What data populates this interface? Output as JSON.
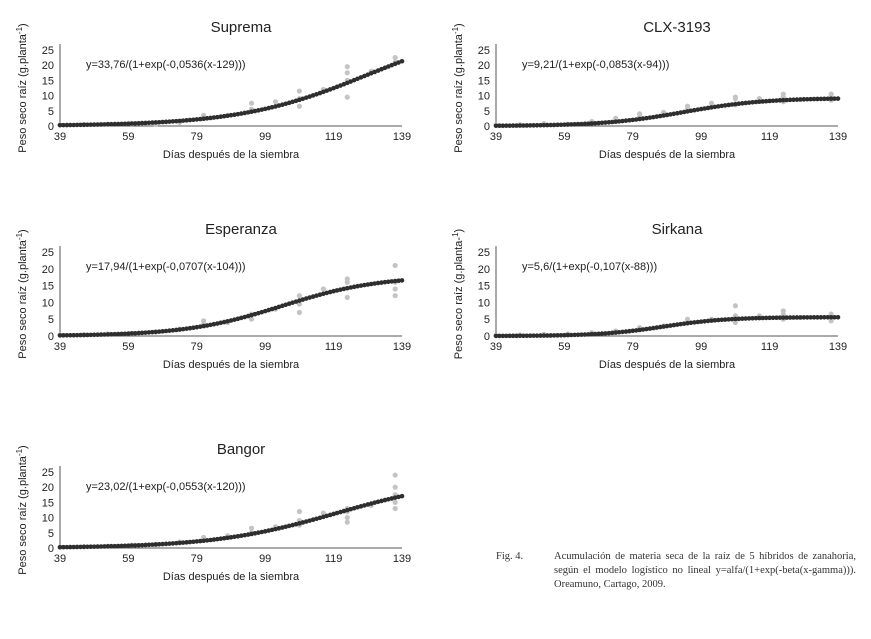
{
  "chart_data": [
    {
      "type": "scatter",
      "title": "Suprema",
      "equation": "y=33,76/(1+exp(-0,0536(x-129)))",
      "ylabel_main": "Peso seco raíz (g.planta",
      "ylabel_sup": "-1",
      "ylabel_end": ")",
      "xlabel": "Días después de la siembra",
      "xlim": [
        39,
        139
      ],
      "ylim": [
        0,
        25
      ],
      "xticks": [
        "39",
        "59",
        "79",
        "99",
        "119",
        "139"
      ],
      "yticks": [
        "0",
        "5",
        "10",
        "15",
        "20",
        "25"
      ],
      "model": {
        "alfa": 33.76,
        "beta": 0.0536,
        "gamma": 129
      },
      "series": [
        {
          "values": [
            [
              39,
              0.4
            ],
            [
              46,
              0.5
            ],
            [
              53,
              0.6
            ],
            [
              60,
              0.8
            ],
            [
              67,
              0.5
            ],
            [
              67,
              1.0
            ],
            [
              74,
              1.2
            ],
            [
              81,
              2.5
            ],
            [
              81,
              3.5
            ],
            [
              88,
              3.5
            ],
            [
              95,
              5.5
            ],
            [
              95,
              7.5
            ],
            [
              102,
              8.0
            ],
            [
              109,
              6.5
            ],
            [
              109,
              9.0
            ],
            [
              109,
              11.5
            ],
            [
              116,
              12.0
            ],
            [
              123,
              9.5
            ],
            [
              123,
              15.0
            ],
            [
              123,
              17.5
            ],
            [
              123,
              19.5
            ],
            [
              130,
              18.0
            ],
            [
              137,
              21.0
            ],
            [
              137,
              22.5
            ]
          ]
        }
      ]
    },
    {
      "type": "scatter",
      "title": "CLX-3193",
      "equation": "y=9,21/(1+exp(-0,0853(x-94)))",
      "ylabel_main": "Peso seco raíz (g.planta",
      "ylabel_sup": "-1",
      "ylabel_end": ")",
      "xlabel": "Días después de la siembra",
      "xlim": [
        39,
        139
      ],
      "ylim": [
        0,
        25
      ],
      "xticks": [
        "39",
        "59",
        "79",
        "99",
        "119",
        "139"
      ],
      "yticks": [
        "0",
        "5",
        "10",
        "15",
        "20",
        "25"
      ],
      "model": {
        "alfa": 9.21,
        "beta": 0.0853,
        "gamma": 94
      },
      "series": [
        {
          "values": [
            [
              39,
              0.3
            ],
            [
              46,
              0.4
            ],
            [
              53,
              0.8
            ],
            [
              60,
              0.6
            ],
            [
              67,
              1.5
            ],
            [
              74,
              2.5
            ],
            [
              81,
              3.0
            ],
            [
              81,
              4.0
            ],
            [
              88,
              4.5
            ],
            [
              95,
              5.5
            ],
            [
              95,
              6.5
            ],
            [
              102,
              7.5
            ],
            [
              109,
              7.0
            ],
            [
              109,
              9.0
            ],
            [
              109,
              9.5
            ],
            [
              116,
              9.0
            ],
            [
              123,
              8.0
            ],
            [
              123,
              9.5
            ],
            [
              123,
              10.5
            ],
            [
              137,
              8.5
            ],
            [
              137,
              9.5
            ],
            [
              137,
              10.5
            ]
          ]
        }
      ]
    },
    {
      "type": "scatter",
      "title": "Esperanza",
      "equation": "y=17,94/(1+exp(-0,0707(x-104)))",
      "ylabel_main": "Peso seco raíz (g.planta",
      "ylabel_sup": "-1",
      "ylabel_end": ")",
      "xlabel": "Días después de la siembra",
      "xlim": [
        39,
        139
      ],
      "ylim": [
        0,
        25
      ],
      "xticks": [
        "39",
        "59",
        "79",
        "99",
        "119",
        "139"
      ],
      "yticks": [
        "0",
        "5",
        "10",
        "15",
        "20",
        "25"
      ],
      "model": {
        "alfa": 17.94,
        "beta": 0.0707,
        "gamma": 104
      },
      "series": [
        {
          "values": [
            [
              39,
              0.3
            ],
            [
              46,
              0.4
            ],
            [
              53,
              0.6
            ],
            [
              60,
              0.8
            ],
            [
              67,
              1.2
            ],
            [
              74,
              2.0
            ],
            [
              81,
              3.5
            ],
            [
              81,
              4.5
            ],
            [
              88,
              4.0
            ],
            [
              95,
              5.0
            ],
            [
              95,
              6.5
            ],
            [
              102,
              8.0
            ],
            [
              109,
              7.0
            ],
            [
              109,
              9.5
            ],
            [
              109,
              12.0
            ],
            [
              116,
              14.0
            ],
            [
              123,
              11.5
            ],
            [
              123,
              16.0
            ],
            [
              123,
              17.0
            ],
            [
              137,
              12.0
            ],
            [
              137,
              14.0
            ],
            [
              137,
              16.0
            ],
            [
              137,
              21.0
            ]
          ]
        }
      ]
    },
    {
      "type": "scatter",
      "title": "Sirkana",
      "equation": "y=5,6/(1+exp(-0,107(x-88)))",
      "ylabel_main": "Peso seco raíz (g.planta-",
      "ylabel_sup": "1",
      "ylabel_end": ")",
      "xlabel": "Días después de la siembra",
      "xlim": [
        39,
        139
      ],
      "ylim": [
        0,
        25
      ],
      "xticks": [
        "39",
        "59",
        "79",
        "99",
        "119",
        "139"
      ],
      "yticks": [
        "0",
        "5",
        "10",
        "15",
        "20",
        "25"
      ],
      "model": {
        "alfa": 5.6,
        "beta": 0.107,
        "gamma": 88
      },
      "series": [
        {
          "values": [
            [
              39,
              0.2
            ],
            [
              46,
              0.3
            ],
            [
              53,
              0.5
            ],
            [
              60,
              0.6
            ],
            [
              67,
              1.0
            ],
            [
              74,
              1.5
            ],
            [
              81,
              2.5
            ],
            [
              88,
              3.0
            ],
            [
              95,
              4.0
            ],
            [
              95,
              5.0
            ],
            [
              102,
              5.0
            ],
            [
              109,
              4.0
            ],
            [
              109,
              6.0
            ],
            [
              109,
              9.0
            ],
            [
              116,
              6.0
            ],
            [
              123,
              5.0
            ],
            [
              123,
              6.5
            ],
            [
              123,
              7.5
            ],
            [
              137,
              4.5
            ],
            [
              137,
              6.0
            ],
            [
              137,
              6.5
            ]
          ]
        }
      ]
    },
    {
      "type": "scatter",
      "title": "Bangor",
      "equation": "y=23,02/(1+exp(-0,0553(x-120)))",
      "ylabel_main": "Peso seco raíz (g.planta",
      "ylabel_sup": "-1",
      "ylabel_end": ")",
      "xlabel": "Días después de la siembra",
      "xlim": [
        39,
        139
      ],
      "ylim": [
        0,
        25
      ],
      "xticks": [
        "39",
        "59",
        "79",
        "99",
        "119",
        "139"
      ],
      "yticks": [
        "0",
        "5",
        "10",
        "15",
        "20",
        "25"
      ],
      "model": {
        "alfa": 23.02,
        "beta": 0.0553,
        "gamma": 120
      },
      "series": [
        {
          "values": [
            [
              39,
              0.3
            ],
            [
              46,
              0.4
            ],
            [
              53,
              0.6
            ],
            [
              60,
              0.9
            ],
            [
              67,
              1.2
            ],
            [
              74,
              2.0
            ],
            [
              81,
              2.5
            ],
            [
              81,
              3.5
            ],
            [
              88,
              4.0
            ],
            [
              95,
              5.0
            ],
            [
              95,
              6.5
            ],
            [
              102,
              7.0
            ],
            [
              109,
              7.5
            ],
            [
              109,
              9.0
            ],
            [
              109,
              12.0
            ],
            [
              116,
              11.5
            ],
            [
              123,
              8.5
            ],
            [
              123,
              10.0
            ],
            [
              123,
              12.0
            ],
            [
              123,
              13.0
            ],
            [
              130,
              14.0
            ],
            [
              137,
              13.0
            ],
            [
              137,
              15.0
            ],
            [
              137,
              17.5
            ],
            [
              137,
              20.0
            ],
            [
              137,
              24.0
            ]
          ]
        }
      ]
    }
  ],
  "caption": {
    "label": "Fig. 4.",
    "text": "Acumulación de materia seca de la raíz de 5 híbridos de zanahoria, según el modelo logístico no lineal y=alfa/(1+exp(-beta(x-gamma))). Oreamuno, Cartago, 2009."
  },
  "colors": {
    "observed_points": "#c4c4c4",
    "fitted_curve": "#2e2e2e",
    "axis": "#555555",
    "text": "#222222"
  }
}
